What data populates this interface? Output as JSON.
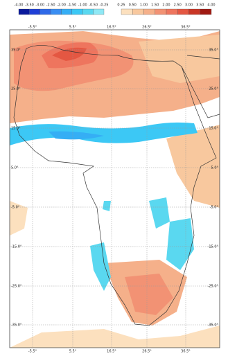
{
  "colorbars": {
    "negative": {
      "labels": [
        "-4.00",
        "-3.50",
        "-3.00",
        "-2.50",
        "-2.00",
        "-1.50",
        "-1.00",
        "-0.50",
        "-0.25"
      ],
      "colors": [
        "#0a1a9c",
        "#1f3fd6",
        "#2f6ae8",
        "#3a8ef2",
        "#35aef5",
        "#3cc8f5",
        "#5ad8f0",
        "#8fe8f5"
      ]
    },
    "positive": {
      "labels": [
        "0.25",
        "0.50",
        "1.00",
        "1.50",
        "2.00",
        "2.50",
        "3.00",
        "3.50",
        "4.00"
      ],
      "colors": [
        "#fce0be",
        "#f8c89e",
        "#f5b08a",
        "#f29274",
        "#ee755e",
        "#e45742",
        "#c93626",
        "#a01a12"
      ]
    }
  },
  "map": {
    "longitude_labels": [
      "-5.5°",
      "5.5°",
      "16.5°",
      "26.5°",
      "36.5°"
    ],
    "latitude_labels": [
      "35.0°",
      "25.0°",
      "15.0°",
      "5.0°",
      "-5.0°",
      "-15.0°",
      "-25.0°",
      "-35.0°"
    ]
  }
}
